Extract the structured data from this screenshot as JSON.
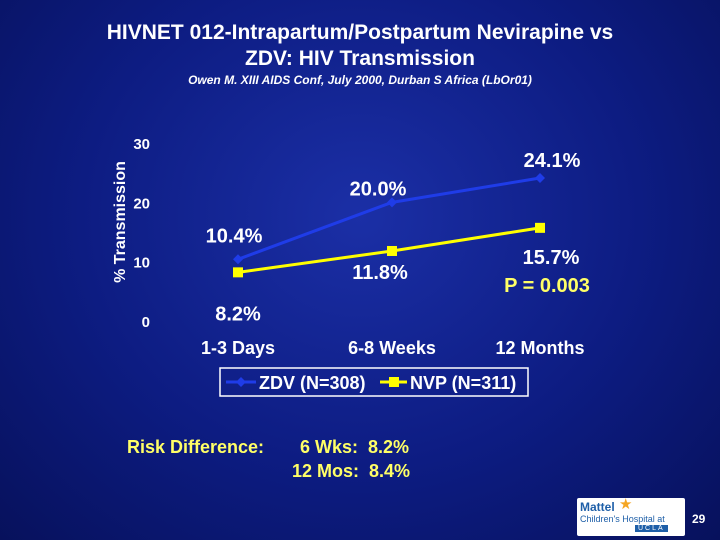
{
  "slide": {
    "title_line1": "HIVNET 012-Intrapartum/Postpartum Nevirapine vs",
    "title_line2": "ZDV:  HIV Transmission",
    "subtitle": "Owen M.  XIII AIDS Conf, July 2000, Durban S Africa (LbOr01)",
    "page_number": "29"
  },
  "chart_data": {
    "type": "line",
    "title": "HIV Transmission",
    "xlabel": "",
    "ylabel": "% Transmission",
    "categories": [
      "1-3 Days",
      "6-8 Weeks",
      "12 Months"
    ],
    "ylim": [
      0,
      30
    ],
    "yticks": [
      0,
      10,
      20,
      30
    ],
    "series": [
      {
        "name": "ZDV (N=308)",
        "values": [
          10.4,
          20.0,
          24.1
        ],
        "labels": [
          "10.4%",
          "20.0%",
          "24.1%"
        ],
        "color": "#1f3ce8",
        "marker": "diamond"
      },
      {
        "name": "NVP (N=311)",
        "values": [
          8.2,
          11.8,
          15.7
        ],
        "labels": [
          "8.2%",
          "11.8%",
          "15.7%"
        ],
        "color": "#ffff00",
        "marker": "square"
      }
    ],
    "annotations": {
      "p_value": "P = 0.003"
    }
  },
  "risk": {
    "label": "Risk Difference:",
    "lines": [
      "6 Wks:  8.2%",
      "12 Mos:  8.4%"
    ]
  },
  "logo": {
    "name": "Mattel",
    "sub": "Children's Hospital at",
    "ucla": "UCLA"
  },
  "colors": {
    "text_yellow": "#ffff66",
    "zdv": "#1f3ce8",
    "nvp": "#ffff00"
  }
}
